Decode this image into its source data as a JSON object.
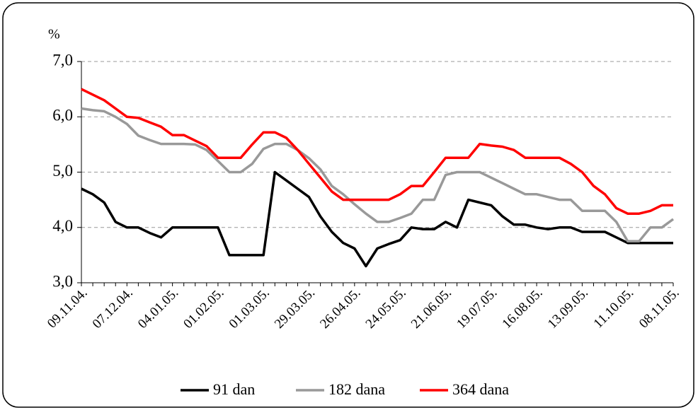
{
  "chart_data": {
    "type": "line",
    "y_label": "%",
    "categories": [
      "09.11.04.",
      null,
      null,
      null,
      "07.12.04.",
      null,
      null,
      null,
      "04.01.05.",
      null,
      null,
      null,
      "01.02.05.",
      null,
      null,
      null,
      "01.03.05.",
      null,
      null,
      null,
      "29.03.05.",
      null,
      null,
      null,
      "26.04.05.",
      null,
      null,
      null,
      "24.05.05.",
      null,
      null,
      null,
      "21.06.05.",
      null,
      null,
      null,
      "19.07.05.",
      null,
      null,
      null,
      "16.08.05.",
      null,
      null,
      null,
      "13.09.05.",
      null,
      null,
      null,
      "11.10.05.",
      null,
      null,
      null,
      "08.11.05."
    ],
    "series": [
      {
        "name": "91 dan",
        "color": "#000000",
        "values": [
          4.7,
          4.6,
          4.45,
          4.1,
          4.0,
          4.0,
          3.9,
          3.82,
          4.0,
          4.0,
          4.0,
          4.0,
          4.0,
          3.5,
          3.5,
          3.5,
          3.5,
          5.0,
          4.85,
          4.7,
          4.55,
          4.2,
          3.92,
          3.72,
          3.62,
          3.3,
          3.62,
          3.7,
          3.77,
          4.0,
          3.97,
          3.97,
          4.1,
          4.0,
          4.5,
          4.45,
          4.4,
          4.2,
          4.05,
          4.05,
          4.0,
          3.97,
          4.0,
          4.0,
          3.92,
          3.92,
          3.92,
          3.82,
          3.72,
          3.72,
          3.72,
          3.72,
          3.72
        ]
      },
      {
        "name": "182 dana",
        "color": "#999999",
        "values": [
          6.15,
          6.12,
          6.1,
          6.0,
          5.87,
          5.66,
          5.58,
          5.51,
          5.51,
          5.51,
          5.5,
          5.4,
          5.2,
          5.0,
          5.0,
          5.15,
          5.42,
          5.51,
          5.51,
          5.4,
          5.25,
          5.05,
          4.75,
          4.6,
          4.42,
          4.25,
          4.1,
          4.1,
          4.17,
          4.25,
          4.5,
          4.5,
          4.95,
          5.0,
          5.0,
          5.0,
          4.9,
          4.8,
          4.7,
          4.6,
          4.6,
          4.55,
          4.5,
          4.5,
          4.3,
          4.3,
          4.3,
          4.1,
          3.75,
          3.75,
          4.0,
          4.0,
          4.15
        ]
      },
      {
        "name": "364 dana",
        "color": "#ff0000",
        "values": [
          6.5,
          6.4,
          6.3,
          6.15,
          6.0,
          5.98,
          5.9,
          5.82,
          5.67,
          5.67,
          5.57,
          5.47,
          5.26,
          5.26,
          5.26,
          5.5,
          5.72,
          5.72,
          5.62,
          5.4,
          5.15,
          4.9,
          4.65,
          4.5,
          4.5,
          4.5,
          4.5,
          4.5,
          4.6,
          4.75,
          4.75,
          5.0,
          5.26,
          5.26,
          5.26,
          5.51,
          5.48,
          5.46,
          5.4,
          5.26,
          5.26,
          5.26,
          5.26,
          5.15,
          5.0,
          4.75,
          4.6,
          4.35,
          4.25,
          4.25,
          4.3,
          4.4,
          4.4
        ]
      }
    ],
    "ylim": [
      3.0,
      7.0
    ],
    "yticks": [
      {
        "value": 3.0,
        "label": "3,0"
      },
      {
        "value": 4.0,
        "label": "4,0"
      },
      {
        "value": 5.0,
        "label": "5,0"
      },
      {
        "value": 6.0,
        "label": "6,0"
      },
      {
        "value": 7.0,
        "label": "7,0"
      }
    ],
    "grid": true,
    "legend": "bottom"
  }
}
